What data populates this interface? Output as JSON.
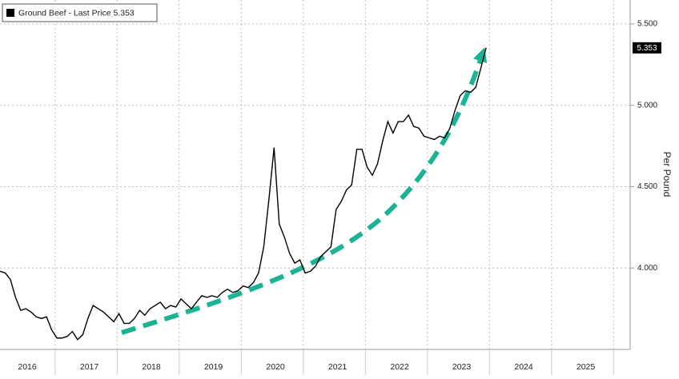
{
  "chart_data": {
    "type": "line",
    "y_label": "Per Pound",
    "categories": [
      null,
      null,
      null,
      null,
      null,
      "2016",
      null,
      null,
      null,
      null,
      null,
      null,
      null,
      null,
      null,
      null,
      null,
      "2017",
      null,
      null,
      null,
      null,
      null,
      null,
      null,
      null,
      null,
      null,
      null,
      "2018",
      null,
      null,
      null,
      null,
      null,
      null,
      null,
      null,
      null,
      null,
      null,
      "2019",
      null,
      null,
      null,
      null,
      null,
      null,
      null,
      null,
      null,
      null,
      null,
      "2020",
      null,
      null,
      null,
      null,
      null,
      null,
      null,
      null,
      null,
      null,
      null,
      "2021",
      null,
      null,
      null,
      null,
      null,
      null,
      null,
      null,
      null,
      null,
      null,
      "2022",
      null,
      null,
      null,
      null,
      null,
      null,
      null,
      null,
      null,
      null,
      null,
      "2023",
      null,
      null,
      null,
      null,
      null,
      null,
      null,
      null,
      null,
      null,
      null,
      "2024",
      null,
      null,
      null,
      null,
      null,
      null,
      null,
      null,
      null,
      null,
      null,
      "2025",
      null,
      null,
      null,
      null,
      null,
      null,
      null,
      null
    ],
    "series": [
      {
        "name": "Ground Beef - Last Price 5.353",
        "color": "#000000",
        "values": [
          3.98,
          3.97,
          3.93,
          3.82,
          3.74,
          3.75,
          3.73,
          3.7,
          3.69,
          3.7,
          3.62,
          3.57,
          3.57,
          3.58,
          3.61,
          3.56,
          3.59,
          3.69,
          3.77,
          3.75,
          3.73,
          3.7,
          3.67,
          3.72,
          3.66,
          3.66,
          3.69,
          3.74,
          3.71,
          3.75,
          3.77,
          3.79,
          3.75,
          3.77,
          3.76,
          3.81,
          3.78,
          3.75,
          3.79,
          3.83,
          3.82,
          3.83,
          3.82,
          3.85,
          3.87,
          3.85,
          3.86,
          3.89,
          3.88,
          3.91,
          3.97,
          4.13,
          4.42,
          4.74,
          4.27,
          4.19,
          4.09,
          4.03,
          4.05,
          3.97,
          3.98,
          4.01,
          4.07,
          4.1,
          4.13,
          4.36,
          4.41,
          4.48,
          4.51,
          4.73,
          4.73,
          4.62,
          4.57,
          4.64,
          4.78,
          4.9,
          4.83,
          4.9,
          4.9,
          4.94,
          4.87,
          4.86,
          4.81,
          4.8,
          4.79,
          4.81,
          4.8,
          4.86,
          4.97,
          5.06,
          5.09,
          5.08,
          5.11,
          5.23,
          5.353,
          null,
          null,
          null,
          null,
          null,
          null,
          null,
          null,
          null,
          null,
          null,
          null,
          null,
          null,
          null,
          null,
          null,
          null,
          null,
          null,
          null,
          null,
          null,
          null,
          null,
          null,
          null
        ]
      }
    ],
    "ylim": [
      3.5,
      5.647
    ],
    "yticks": [
      {
        "value": 4.0,
        "label": "4.000"
      },
      {
        "value": 4.5,
        "label": "4.500"
      },
      {
        "value": 5.0,
        "label": "5.000"
      },
      {
        "value": 5.5,
        "label": "5.500"
      }
    ],
    "grid": true
  }
}
